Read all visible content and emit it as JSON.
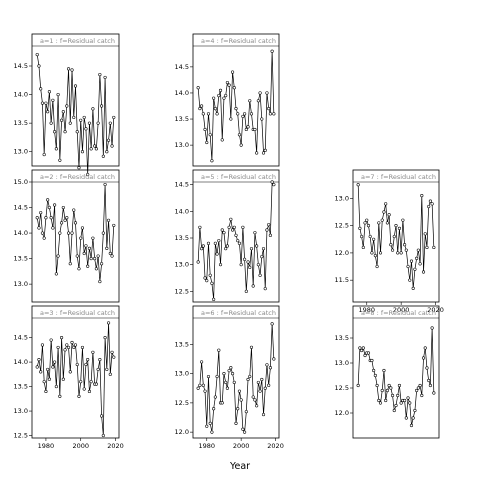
{
  "chart_data": {
    "type": "line",
    "layout": "faceted",
    "xlabel": "Year",
    "panels": [
      {
        "title": "a=1  :  f=Residual catch",
        "xlim": [
          1972,
          2022
        ],
        "ylim": [
          12.75,
          14.85
        ],
        "xticks": [
          "1980",
          "2000",
          "2020"
        ],
        "yticks": [
          "13.0",
          "13.5",
          "14.0",
          "14.5"
        ],
        "series": [
          {
            "x": [
              1975,
              1976,
              1977,
              1978,
              1979,
              1980,
              1981,
              1982,
              1983,
              1984,
              1985,
              1986,
              1987,
              1988,
              1989,
              1990,
              1991,
              1992,
              1993,
              1994,
              1995,
              1996,
              1997,
              1998,
              1999,
              2000,
              2001,
              2002,
              2003,
              2004,
              2005,
              2006,
              2007,
              2008,
              2009,
              2010,
              2011,
              2012,
              2013,
              2014,
              2015,
              2016,
              2017,
              2018,
              2019
            ],
            "y": [
              14.7,
              14.5,
              14.1,
              13.85,
              12.95,
              13.85,
              13.7,
              14.05,
              13.5,
              13.9,
              13.35,
              13.05,
              14.0,
              12.85,
              13.55,
              13.7,
              13.35,
              13.8,
              14.45,
              13.5,
              14.43,
              13.6,
              14.15,
              13.35,
              12.72,
              13.55,
              13.0,
              13.6,
              13.4,
              12.6,
              13.5,
              13.05,
              13.75,
              13.1,
              13.05,
              13.5,
              14.35,
              13.8,
              12.92,
              14.3,
              13.0,
              13.2,
              13.5,
              13.1,
              13.6
            ]
          }
        ]
      },
      {
        "title": "a=2  :  f=Residual catch",
        "xlim": [
          1972,
          2022
        ],
        "ylim": [
          12.65,
          15.0
        ],
        "xticks": [
          "1980",
          "2000",
          "2020"
        ],
        "yticks": [
          "13.0",
          "13.5",
          "14.0",
          "14.5",
          "15.0"
        ],
        "series": [
          {
            "x": [
              1975,
              1976,
              1977,
              1978,
              1979,
              1980,
              1981,
              1982,
              1983,
              1984,
              1985,
              1986,
              1987,
              1988,
              1989,
              1990,
              1991,
              1992,
              1993,
              1994,
              1995,
              1996,
              1997,
              1998,
              1999,
              2000,
              2001,
              2002,
              2003,
              2004,
              2005,
              2006,
              2007,
              2008,
              2009,
              2010,
              2011,
              2012,
              2013,
              2014,
              2015,
              2016,
              2017,
              2018,
              2019
            ],
            "y": [
              14.3,
              14.1,
              14.4,
              14.0,
              13.9,
              14.3,
              14.65,
              14.5,
              14.3,
              14.1,
              14.55,
              13.2,
              13.55,
              14.0,
              14.2,
              14.5,
              14.25,
              14.3,
              14.0,
              13.4,
              14.0,
              14.45,
              14.2,
              13.55,
              13.3,
              13.9,
              14.1,
              13.6,
              13.75,
              13.35,
              13.7,
              13.5,
              13.9,
              13.5,
              13.3,
              13.55,
              13.05,
              13.4,
              14.0,
              14.95,
              13.7,
              14.25,
              13.6,
              13.55,
              14.15
            ]
          }
        ]
      },
      {
        "title": "a=3  :  f=Residual catch",
        "xlim": [
          1972,
          2022
        ],
        "ylim": [
          12.45,
          14.9
        ],
        "xticks": [
          "1980",
          "2000",
          "2020"
        ],
        "yticks": [
          "12.5",
          "13.0",
          "13.5",
          "14.0",
          "14.5"
        ],
        "series": [
          {
            "x": [
              1975,
              1976,
              1977,
              1978,
              1979,
              1980,
              1981,
              1982,
              1983,
              1984,
              1985,
              1986,
              1987,
              1988,
              1989,
              1990,
              1991,
              1992,
              1993,
              1994,
              1995,
              1996,
              1997,
              1998,
              1999,
              2000,
              2001,
              2002,
              2003,
              2004,
              2005,
              2006,
              2007,
              2008,
              2009,
              2010,
              2011,
              2012,
              2013,
              2014,
              2015,
              2016,
              2017,
              2018,
              2019
            ],
            "y": [
              13.9,
              14.05,
              13.8,
              14.35,
              13.6,
              13.4,
              13.85,
              13.65,
              14.45,
              13.9,
              14.0,
              13.5,
              14.3,
              13.3,
              14.5,
              13.65,
              14.25,
              14.35,
              14.3,
              13.8,
              14.4,
              14.3,
              14.35,
              13.95,
              13.3,
              13.6,
              14.3,
              13.45,
              13.95,
              14.05,
              13.4,
              13.6,
              14.2,
              13.55,
              13.55,
              13.85,
              14.05,
              12.9,
              12.5,
              14.5,
              13.85,
              14.8,
              13.75,
              14.2,
              14.1
            ]
          }
        ]
      },
      {
        "title": "a=4  :  f=Residual catch",
        "xlim": [
          1972,
          2022
        ],
        "ylim": [
          12.6,
          14.9
        ],
        "xticks": [
          "1980",
          "2000",
          "2020"
        ],
        "yticks": [
          "13.0",
          "13.5",
          "14.0",
          "14.5"
        ],
        "series": [
          {
            "x": [
              1975,
              1976,
              1977,
              1978,
              1979,
              1980,
              1981,
              1982,
              1983,
              1984,
              1985,
              1986,
              1987,
              1988,
              1989,
              1990,
              1991,
              1992,
              1993,
              1994,
              1995,
              1996,
              1997,
              1998,
              1999,
              2000,
              2001,
              2002,
              2003,
              2004,
              2005,
              2006,
              2007,
              2008,
              2009,
              2010,
              2011,
              2012,
              2013,
              2014,
              2015,
              2016,
              2017,
              2018,
              2019
            ],
            "y": [
              14.1,
              13.7,
              13.75,
              13.6,
              13.3,
              13.05,
              13.6,
              13.2,
              12.7,
              13.9,
              13.7,
              13.6,
              13.95,
              14.05,
              13.1,
              13.9,
              13.95,
              14.2,
              14.15,
              13.5,
              14.4,
              14.1,
              13.7,
              13.6,
              13.2,
              13.0,
              13.55,
              13.6,
              13.3,
              13.35,
              13.85,
              13.6,
              13.3,
              13.3,
              12.85,
              13.85,
              14.0,
              13.5,
              12.85,
              12.9,
              14.0,
              13.7,
              13.6,
              14.8,
              13.6
            ]
          }
        ]
      },
      {
        "title": "a=5  :  f=Residual catch",
        "xlim": [
          1972,
          2022
        ],
        "ylim": [
          12.3,
          14.55
        ],
        "xticks": [
          "1980",
          "2000",
          "2020"
        ],
        "yticks": [
          "12.5",
          "13.0",
          "13.5",
          "14.0",
          "14.5"
        ],
        "series": [
          {
            "x": [
              1975,
              1976,
              1977,
              1978,
              1979,
              1980,
              1981,
              1982,
              1983,
              1984,
              1985,
              1986,
              1987,
              1988,
              1989,
              1990,
              1991,
              1992,
              1993,
              1994,
              1995,
              1996,
              1997,
              1998,
              1999,
              2000,
              2001,
              2002,
              2003,
              2004,
              2005,
              2006,
              2007,
              2008,
              2009,
              2010,
              2011,
              2012,
              2013,
              2014,
              2015,
              2016,
              2017,
              2018,
              2019
            ],
            "y": [
              13.05,
              13.7,
              13.3,
              13.35,
              12.75,
              12.7,
              13.4,
              12.8,
              12.65,
              12.35,
              13.4,
              13.2,
              13.45,
              13.0,
              13.65,
              13.6,
              13.3,
              13.35,
              13.7,
              13.85,
              13.65,
              13.7,
              13.55,
              13.45,
              13.4,
              13.0,
              13.7,
              13.1,
              12.5,
              13.05,
              12.95,
              13.3,
              12.6,
              13.6,
              13.35,
              13.0,
              12.8,
              13.15,
              13.3,
              12.55,
              13.65,
              13.75,
              13.55,
              14.55,
              14.5
            ]
          }
        ]
      },
      {
        "title": "a=6  :  f=Residual catch",
        "xlim": [
          1972,
          2022
        ],
        "ylim": [
          11.9,
          13.95
        ],
        "xticks": [
          "1980",
          "2000",
          "2020"
        ],
        "yticks": [
          "12.0",
          "12.5",
          "13.0",
          "13.5"
        ],
        "series": [
          {
            "x": [
              1975,
              1976,
              1977,
              1978,
              1979,
              1980,
              1981,
              1982,
              1983,
              1984,
              1985,
              1986,
              1987,
              1988,
              1989,
              1990,
              1991,
              1992,
              1993,
              1994,
              1995,
              1996,
              1997,
              1998,
              1999,
              2000,
              2001,
              2002,
              2003,
              2004,
              2005,
              2006,
              2007,
              2008,
              2009,
              2010,
              2011,
              2012,
              2013,
              2014,
              2015,
              2016,
              2017,
              2018,
              2019
            ],
            "y": [
              12.75,
              12.8,
              13.2,
              12.8,
              12.7,
              12.1,
              12.95,
              12.15,
              12.0,
              12.4,
              12.6,
              12.95,
              13.4,
              12.5,
              12.5,
              13.0,
              12.85,
              12.75,
              13.05,
              13.1,
              13.0,
              12.85,
              12.15,
              12.4,
              12.7,
              12.55,
              12.05,
              12.0,
              12.35,
              12.9,
              12.95,
              13.45,
              12.6,
              12.55,
              12.45,
              12.85,
              12.7,
              12.9,
              12.3,
              12.75,
              13.15,
              12.8,
              13.1,
              13.85,
              13.25
            ]
          }
        ]
      },
      {
        "title": "a=7  :  f=Residual catch",
        "xlim": [
          1972,
          2022
        ],
        "ylim": [
          11.1,
          13.3
        ],
        "xticks": [
          "1980",
          "2000",
          "2020"
        ],
        "yticks": [
          "11.5",
          "12.0",
          "12.5",
          "13.0"
        ],
        "series": [
          {
            "x": [
              1975,
              1976,
              1977,
              1978,
              1979,
              1980,
              1981,
              1982,
              1983,
              1984,
              1985,
              1986,
              1987,
              1988,
              1989,
              1990,
              1991,
              1992,
              1993,
              1994,
              1995,
              1996,
              1997,
              1998,
              1999,
              2000,
              2001,
              2002,
              2003,
              2004,
              2005,
              2006,
              2007,
              2008,
              2009,
              2010,
              2011,
              2012,
              2013,
              2014,
              2015,
              2016,
              2017,
              2018,
              2019
            ],
            "y": [
              13.25,
              12.45,
              12.3,
              12.1,
              12.55,
              12.6,
              12.5,
              12.3,
              12.0,
              12.25,
              11.95,
              11.75,
              12.55,
              12.0,
              12.6,
              12.75,
              12.9,
              12.55,
              12.7,
              12.15,
              12.05,
              12.3,
              12.5,
              12.0,
              12.45,
              12.0,
              12.6,
              12.15,
              12.05,
              11.75,
              11.5,
              11.85,
              11.35,
              11.7,
              11.9,
              12.05,
              11.8,
              13.05,
              11.65,
              12.35,
              12.1,
              12.85,
              12.95,
              12.9,
              12.1
            ]
          }
        ]
      },
      {
        "title": "a=8  :  f=Residual catch",
        "xlim": [
          1972,
          2022
        ],
        "ylim": [
          11.5,
          13.9
        ],
        "xticks": [
          "1980",
          "2000",
          "2020"
        ],
        "yticks": [
          "12.0",
          "12.5",
          "13.0",
          "13.5"
        ],
        "series": [
          {
            "x": [
              1975,
              1976,
              1977,
              1978,
              1979,
              1980,
              1981,
              1982,
              1983,
              1984,
              1985,
              1986,
              1987,
              1988,
              1989,
              1990,
              1991,
              1992,
              1993,
              1994,
              1995,
              1996,
              1997,
              1998,
              1999,
              2000,
              2001,
              2002,
              2003,
              2004,
              2005,
              2006,
              2007,
              2008,
              2009,
              2010,
              2011,
              2012,
              2013,
              2014,
              2015,
              2016,
              2017,
              2018,
              2019
            ],
            "y": [
              12.55,
              13.3,
              13.25,
              13.3,
              13.15,
              13.2,
              13.2,
              13.05,
              13.05,
              12.85,
              12.75,
              12.55,
              12.25,
              12.2,
              12.45,
              12.85,
              12.25,
              12.45,
              12.55,
              12.5,
              12.35,
              12.05,
              12.15,
              12.35,
              12.55,
              12.2,
              12.25,
              12.25,
              11.9,
              12.3,
              12.2,
              11.75,
              11.9,
              12.05,
              12.45,
              12.5,
              12.55,
              12.35,
              13.1,
              13.3,
              12.9,
              12.65,
              12.55,
              13.7,
              12.4
            ]
          }
        ]
      }
    ]
  }
}
